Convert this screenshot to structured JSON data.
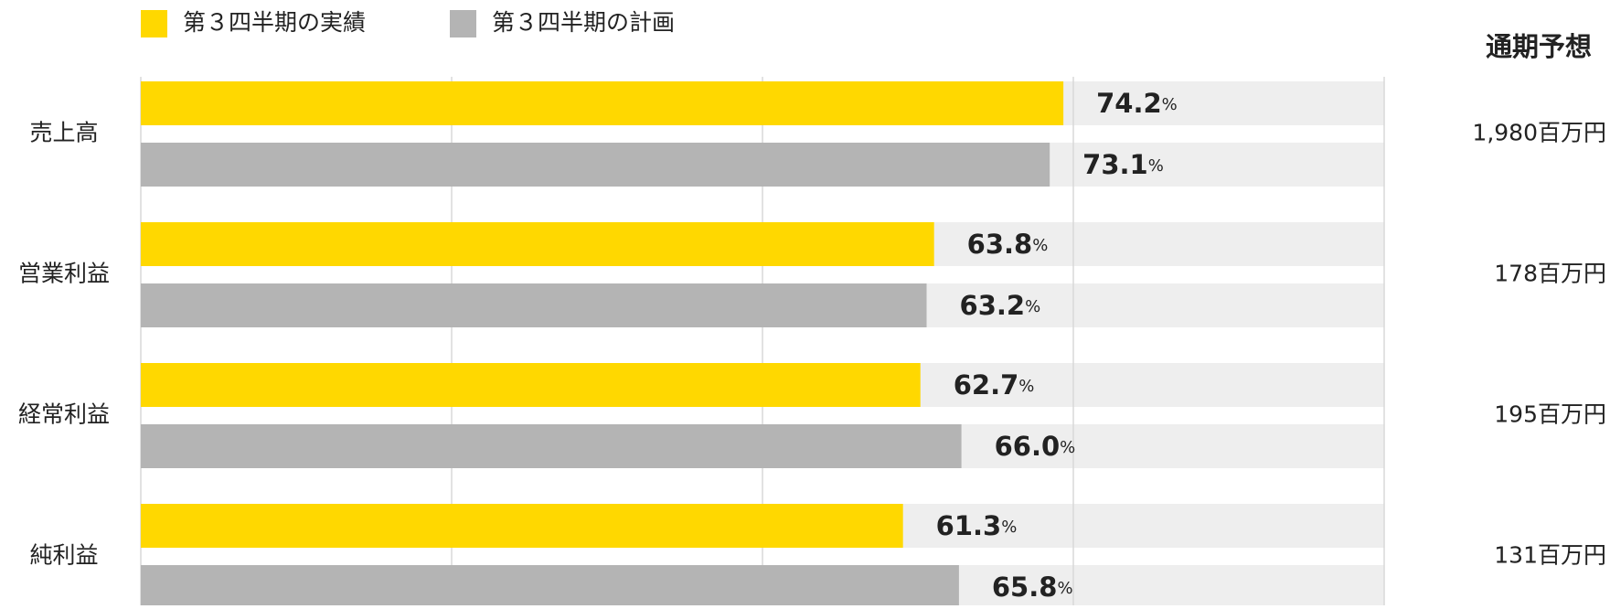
{
  "chart_data": {
    "type": "bar",
    "orientation": "horizontal",
    "categories": [
      "売上高",
      "営業利益",
      "経常利益",
      "純利益"
    ],
    "series": [
      {
        "name": "第３四半期の実績",
        "color": "#FFD800",
        "label_color": "#F0A040",
        "values": [
          74.2,
          63.8,
          62.7,
          61.3
        ],
        "value_labels": [
          "74.2%",
          "63.8%",
          "62.7%",
          "61.3%"
        ]
      },
      {
        "name": "第３四半期の計画",
        "color": "#B4B4B4",
        "label_color": "#404040",
        "values": [
          73.1,
          63.2,
          66.0,
          65.8
        ],
        "value_labels": [
          "73.1%",
          "63.2%",
          "66.0%",
          "65.8%"
        ]
      }
    ],
    "xlim": [
      0,
      100
    ],
    "xticks": [
      0,
      25,
      50,
      75,
      100
    ],
    "grid": true,
    "track_color": "#EEEEEE",
    "forecast_title": "通期予想",
    "forecast_title_color": "#F0A040",
    "forecast_labels": [
      "1,980百万円",
      "178百万円",
      "195百万円",
      "131百万円"
    ]
  }
}
